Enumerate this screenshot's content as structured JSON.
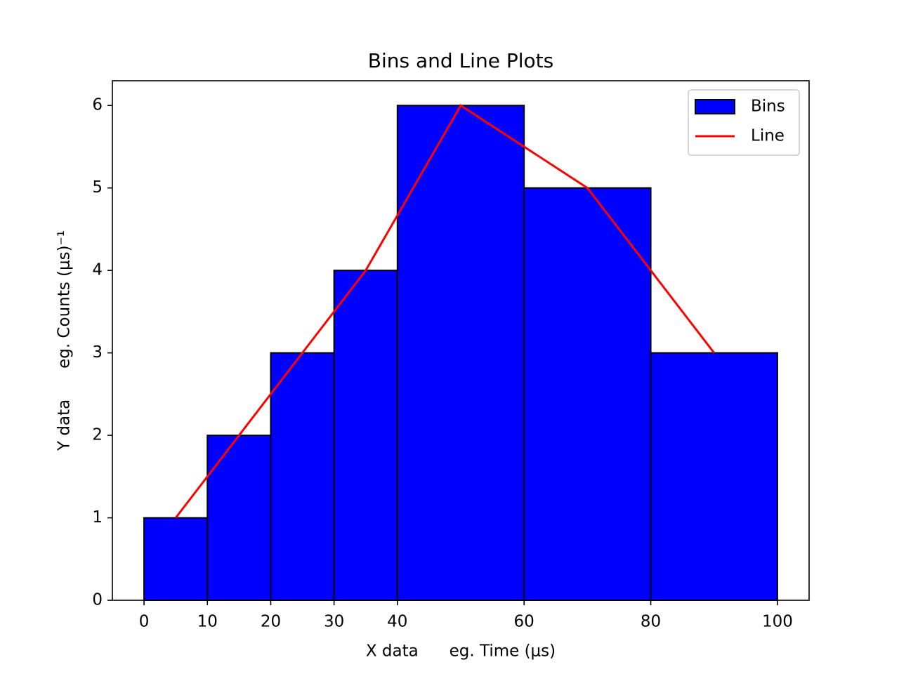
{
  "chart_data": {
    "type": "histogram",
    "title": "Bins and Line Plots",
    "xlabel": "X data      eg. Time (μs)",
    "ylabel": "Y data      eg. Counts (μs)⁻¹",
    "series": [
      {
        "name": "Bins",
        "type": "histogram",
        "color": "#0000ff",
        "edgecolor": "#000000",
        "bins": [
          0,
          10,
          20,
          30,
          40,
          60,
          80,
          100
        ],
        "values": [
          1,
          2,
          3,
          4,
          6,
          5,
          3
        ]
      },
      {
        "name": "Line",
        "type": "line",
        "color": "#ff0000",
        "x": [
          5,
          15,
          25,
          35,
          50,
          70,
          90
        ],
        "values": [
          1,
          2,
          3,
          4,
          6,
          5,
          3
        ]
      }
    ],
    "xlim": [
      -5,
      105
    ],
    "ylim": [
      0,
      6.3
    ],
    "xticks": [
      0,
      10,
      20,
      30,
      40,
      60,
      80,
      100
    ],
    "yticks": [
      0,
      1,
      2,
      3,
      4,
      5,
      6
    ],
    "legend": "upper right",
    "grid": false
  }
}
